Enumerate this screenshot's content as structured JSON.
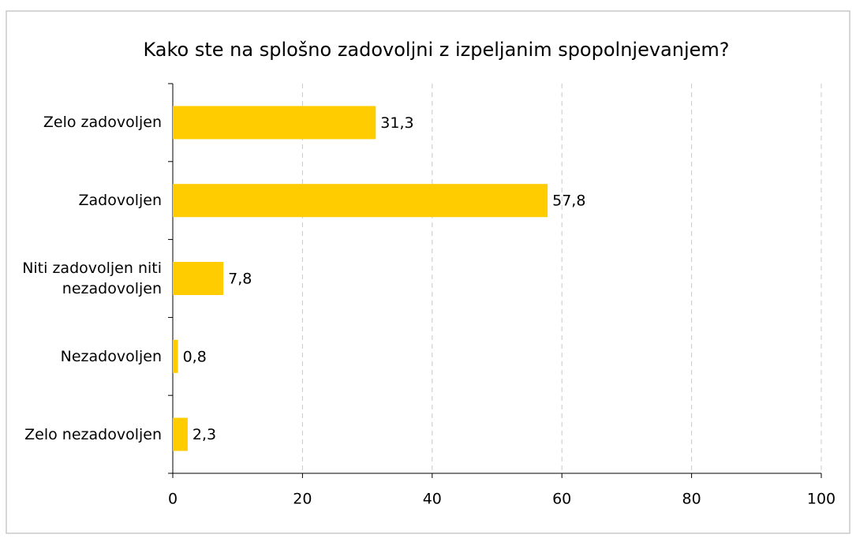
{
  "chart_data": {
    "type": "bar",
    "orientation": "horizontal",
    "title": "Kako ste na splošno zadovoljni z izpeljanim spopolnjevanjem?",
    "categories": [
      "Zelo zadovoljen",
      "Zadovoljen",
      "Niti zadovoljen niti nezadovoljen",
      "Nezadovoljen",
      "Zelo nezadovoljen"
    ],
    "values": [
      31.3,
      57.8,
      7.8,
      0.8,
      2.3
    ],
    "value_labels": [
      "31,3",
      "57,8",
      "7,8",
      "0,8",
      "2,3"
    ],
    "color": "#ffcc00",
    "xlim": [
      0,
      100
    ],
    "xticks": [
      0,
      20,
      40,
      60,
      80,
      100
    ],
    "grid": true
  }
}
